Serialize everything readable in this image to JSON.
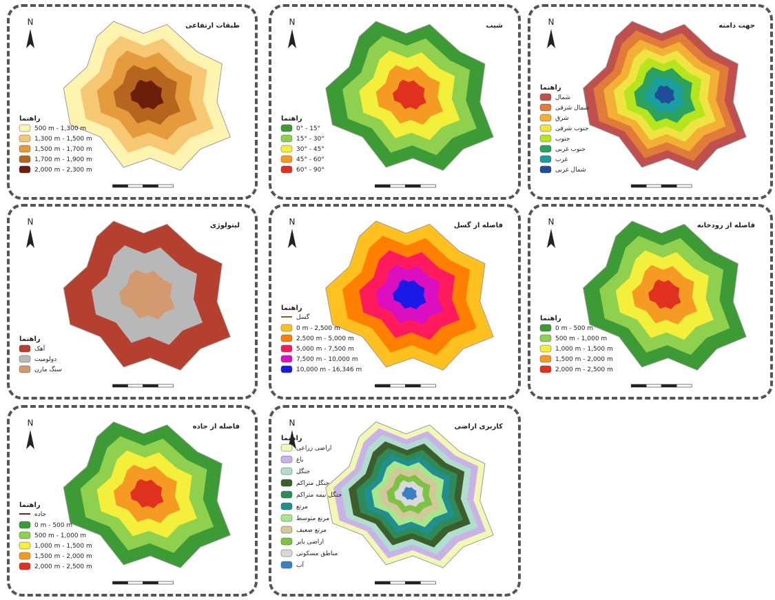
{
  "panels": [
    {
      "title": "طبقات ارتفاعی",
      "north": "N",
      "legend_title": "راهنما",
      "legend": [
        {
          "label": "500 m - 1,300 m",
          "color": "#fff3b0"
        },
        {
          "label": "1,300 m - 1,500 m",
          "color": "#f7c873"
        },
        {
          "label": "1,500 m - 1,700 m",
          "color": "#e59a3c"
        },
        {
          "label": "1,700 m - 1,900 m",
          "color": "#b5651d"
        },
        {
          "label": "2,000 m - 2,300 m",
          "color": "#6b1e0a"
        }
      ]
    },
    {
      "title": "شیب",
      "north": "N",
      "legend_title": "راهنما",
      "legend": [
        {
          "label": "0° - 15°",
          "color": "#3d9b35"
        },
        {
          "label": "15° - 30°",
          "color": "#8fd14f"
        },
        {
          "label": "30° - 45°",
          "color": "#f4ef3a"
        },
        {
          "label": "45° - 60°",
          "color": "#f59a23"
        },
        {
          "label": "60° - 90°",
          "color": "#e0301e"
        }
      ]
    },
    {
      "title": "جهت دامنه",
      "north": "N",
      "legend_title": "راهنما",
      "legend": [
        {
          "label": "شمال",
          "color": "#c0504d"
        },
        {
          "label": "شمال شرقی",
          "color": "#e07b39"
        },
        {
          "label": "شرق",
          "color": "#f2b134"
        },
        {
          "label": "جنوب شرقی",
          "color": "#f0e442"
        },
        {
          "label": "جنوب",
          "color": "#b5e61d"
        },
        {
          "label": "جنوب غربی",
          "color": "#2ca25f"
        },
        {
          "label": "غرب",
          "color": "#1a9e9e"
        },
        {
          "label": "شمال غربی",
          "color": "#1f4e99"
        }
      ]
    },
    {
      "title": "لیتولوژی",
      "north": "N",
      "legend_title": "راهنما",
      "legend": [
        {
          "label": "آهک",
          "color": "#b5402f"
        },
        {
          "label": "دولومیت",
          "color": "#b8b8b8"
        },
        {
          "label": "سنگ مارن",
          "color": "#d29a6e"
        }
      ]
    },
    {
      "title": "فاصله از گسل",
      "north": "N",
      "legend_title": "راهنما",
      "line_legend": {
        "label": "گسل",
        "color": "#8b5a2b"
      },
      "legend": [
        {
          "label": "0 m - 2,500 m",
          "color": "#ffc020"
        },
        {
          "label": "2,500 m - 5,000 m",
          "color": "#ff7f00"
        },
        {
          "label": "5,000 m - 7,500 m",
          "color": "#ff1a5e"
        },
        {
          "label": "7,500 m - 10,000 m",
          "color": "#d90fc0"
        },
        {
          "label": "10,000 m - 16,346 m",
          "color": "#1a1ae6"
        }
      ]
    },
    {
      "title": "فاصله از رودخانه",
      "north": "N",
      "legend_title": "راهنما",
      "legend": [
        {
          "label": "0 m - 500 m",
          "color": "#3d9b35"
        },
        {
          "label": "500 m - 1,000 m",
          "color": "#8fd14f"
        },
        {
          "label": "1,000 m - 1,500 m",
          "color": "#f4ef3a"
        },
        {
          "label": "1,500 m - 2,000 m",
          "color": "#f59a23"
        },
        {
          "label": "2,000 m - 2,500 m",
          "color": "#e0301e"
        }
      ]
    },
    {
      "title": "فاصله از جاده",
      "north": "N",
      "legend_title": "راهنما",
      "line_legend": {
        "label": "جاده",
        "color": "#8b1a1a"
      },
      "legend": [
        {
          "label": "0 m - 500 m",
          "color": "#3d9b35"
        },
        {
          "label": "500 m - 1,000 m",
          "color": "#8fd14f"
        },
        {
          "label": "1,000 m - 1,500 m",
          "color": "#f4ef3a"
        },
        {
          "label": "1,500 m - 2,000 m",
          "color": "#f59a23"
        },
        {
          "label": "2,000 m - 2,500 m",
          "color": "#e0301e"
        }
      ]
    },
    {
      "title": "کاربری اراضی",
      "north": "N",
      "legend_title": "راهنما",
      "legend": [
        {
          "label": "اراضی زراعی",
          "color": "#f3f7b5"
        },
        {
          "label": "باغ",
          "color": "#c9b3e6"
        },
        {
          "label": "جنگل",
          "color": "#b0ddd0"
        },
        {
          "label": "جنگل متراکم",
          "color": "#3b5e2b"
        },
        {
          "label": "جنگل نیمه متراکم",
          "color": "#2e8b57"
        },
        {
          "label": "مرتع",
          "color": "#1f8f8f"
        },
        {
          "label": "مرتع متوسط",
          "color": "#a8e68c"
        },
        {
          "label": "مرتع ضعیف",
          "color": "#d4c79a"
        },
        {
          "label": "اراضی بایر",
          "color": "#7cc243"
        },
        {
          "label": "مناطق مسکونی",
          "color": "#d9d9d9"
        },
        {
          "label": "آب",
          "color": "#3a7fc1"
        }
      ]
    }
  ]
}
